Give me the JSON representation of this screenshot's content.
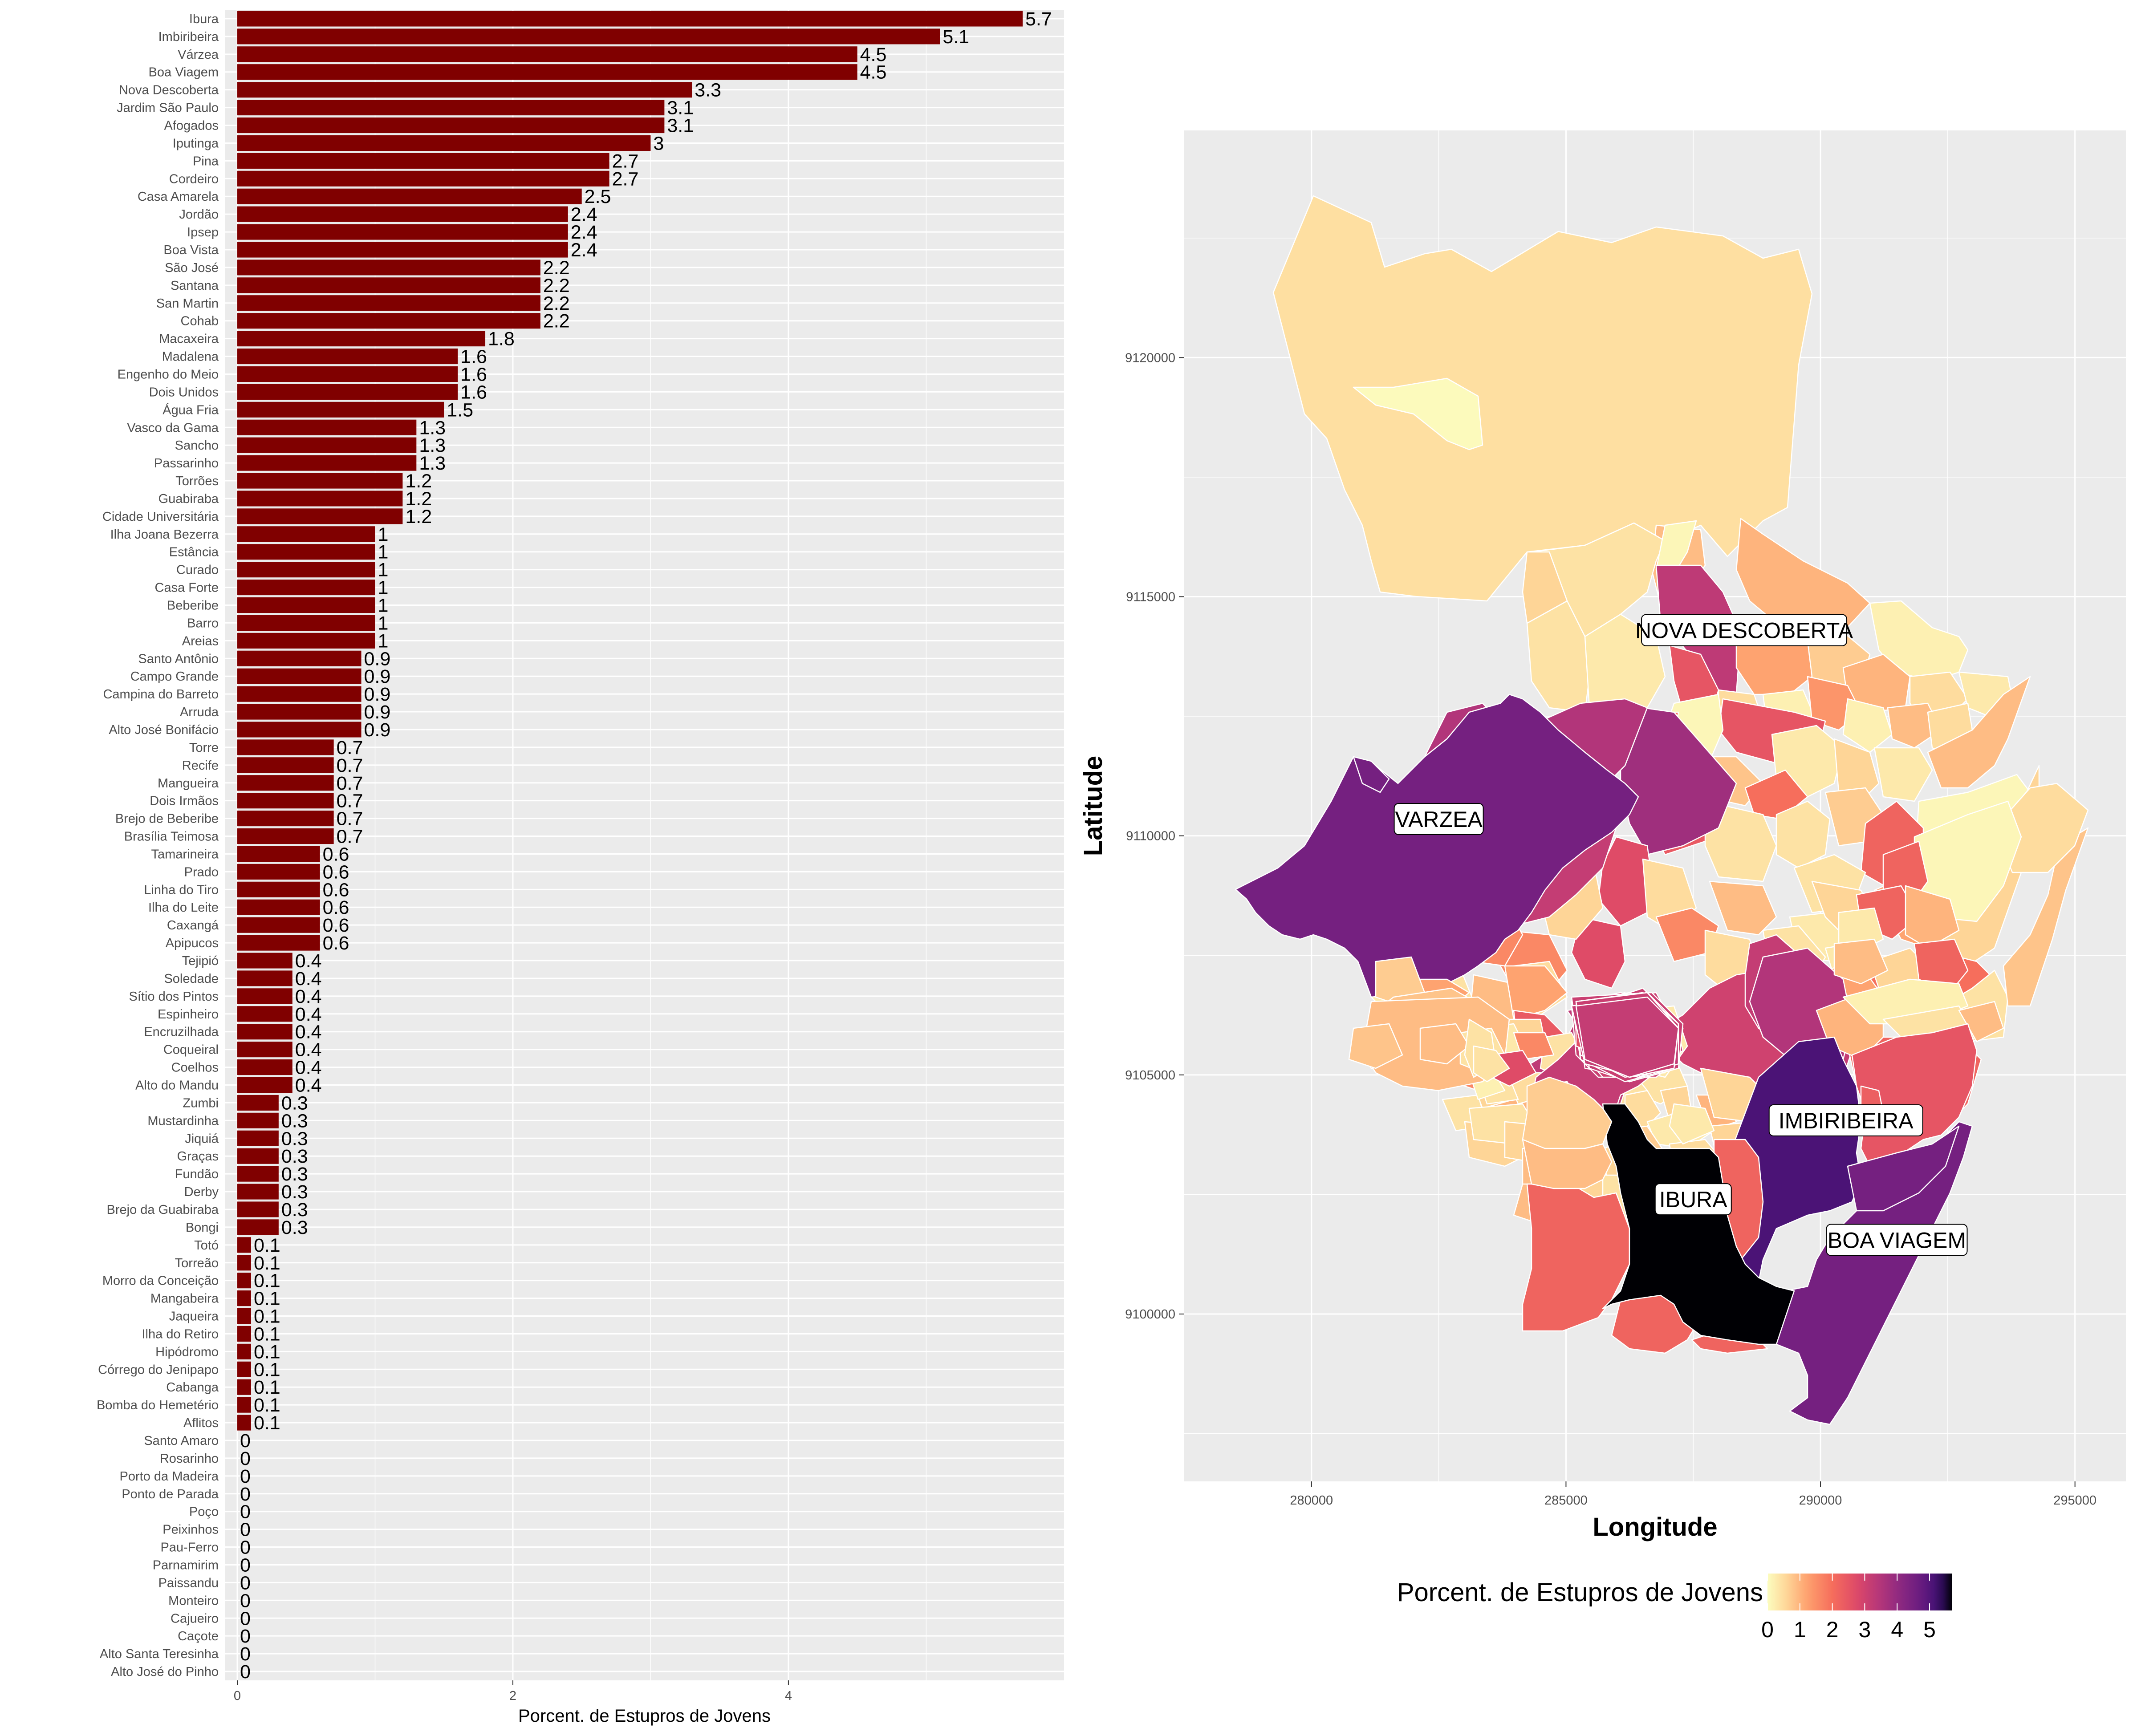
{
  "chart_data": [
    {
      "type": "bar",
      "orientation": "horizontal",
      "xlabel": "Porcent. de Estupros de Jovens",
      "xlim": [
        0,
        6
      ],
      "xticks": [
        0,
        2,
        4
      ],
      "bar_color": "#800000",
      "categories": [
        "Ibura",
        "Imbiribeira",
        "Várzea",
        "Boa Viagem",
        "Nova Descoberta",
        "Jardim São Paulo",
        "Afogados",
        "Iputinga",
        "Pina",
        "Cordeiro",
        "Casa Amarela",
        "Jordão",
        "Ipsep",
        "Boa Vista",
        "São José",
        "Santana",
        "San Martin",
        "Cohab",
        "Macaxeira",
        "Madalena",
        "Engenho do Meio",
        "Dois Unidos",
        "Água Fria",
        "Vasco da Gama",
        "Sancho",
        "Passarinho",
        "Torrões",
        "Guabiraba",
        "Cidade Universitária",
        "Ilha Joana Bezerra",
        "Estância",
        "Curado",
        "Casa Forte",
        "Beberibe",
        "Barro",
        "Areias",
        "Santo Antônio",
        "Campo Grande",
        "Campina do Barreto",
        "Arruda",
        "Alto José Bonifácio",
        "Torre",
        "Recife",
        "Mangueira",
        "Dois Irmãos",
        "Brejo de Beberibe",
        "Brasília Teimosa",
        "Tamarineira",
        "Prado",
        "Linha do Tiro",
        "Ilha do Leite",
        "Caxangá",
        "Apipucos",
        "Tejipió",
        "Soledade",
        "Sítio dos Pintos",
        "Espinheiro",
        "Encruzilhada",
        "Coqueiral",
        "Coelhos",
        "Alto do Mandu",
        "Zumbi",
        "Mustardinha",
        "Jiquiá",
        "Graças",
        "Fundão",
        "Derby",
        "Brejo da Guabiraba",
        "Bongi",
        "Totó",
        "Torreão",
        "Morro da Conceição",
        "Mangabeira",
        "Jaqueira",
        "Ilha do Retiro",
        "Hipódromo",
        "Córrego do Jenipapo",
        "Cabanga",
        "Bomba do Hemetério",
        "Aflitos",
        "Santo Amaro",
        "Rosarinho",
        "Porto da Madeira",
        "Ponto de Parada",
        "Poço",
        "Peixinhos",
        "Pau-Ferro",
        "Parnamirim",
        "Paissandu",
        "Monteiro",
        "Cajueiro",
        "Caçote",
        "Alto Santa Teresinha",
        "Alto José do Pinho"
      ],
      "values": [
        5.7,
        5.1,
        4.5,
        4.5,
        3.3,
        3.1,
        3.1,
        3,
        2.7,
        2.7,
        2.5,
        2.4,
        2.4,
        2.4,
        2.2,
        2.2,
        2.2,
        2.2,
        1.8,
        1.6,
        1.6,
        1.6,
        1.5,
        1.3,
        1.3,
        1.3,
        1.2,
        1.2,
        1.2,
        1,
        1,
        1,
        1,
        1,
        1,
        1,
        0.9,
        0.9,
        0.9,
        0.9,
        0.9,
        0.7,
        0.7,
        0.7,
        0.7,
        0.7,
        0.7,
        0.6,
        0.6,
        0.6,
        0.6,
        0.6,
        0.6,
        0.4,
        0.4,
        0.4,
        0.4,
        0.4,
        0.4,
        0.4,
        0.4,
        0.3,
        0.3,
        0.3,
        0.3,
        0.3,
        0.3,
        0.3,
        0.3,
        0.1,
        0.1,
        0.1,
        0.1,
        0.1,
        0.1,
        0.1,
        0.1,
        0.1,
        0.1,
        0.1,
        0,
        0,
        0,
        0,
        0,
        0,
        0,
        0,
        0,
        0,
        0,
        0,
        0,
        0
      ]
    },
    {
      "type": "choropleth",
      "xlabel": "Longitude",
      "ylabel": "Latitude",
      "xticks": [
        280000,
        285000,
        290000,
        295000
      ],
      "yticks": [
        9100000,
        9105000,
        9110000,
        9115000,
        9120000
      ],
      "xlim": [
        277500,
        296000
      ],
      "ylim": [
        9096500,
        9124750
      ],
      "legend": {
        "title": "Porcent. de Estupros de Jovens",
        "position": "bottom",
        "ticks": [
          0,
          1,
          2,
          3,
          4,
          5
        ],
        "range": [
          0,
          5.7
        ],
        "palette": "magma-reversed"
      },
      "labels": [
        {
          "text": "NOVA DESCOBERTA",
          "x": 288500,
          "y": 9114300
        },
        {
          "text": "VARZEA",
          "x": 282500,
          "y": 9110350
        },
        {
          "text": "IMBIRIBEIRA",
          "x": 290500,
          "y": 9104050
        },
        {
          "text": "IBURA",
          "x": 287500,
          "y": 9102400
        },
        {
          "text": "BOA VIAGEM",
          "x": 291500,
          "y": 9101550
        }
      ]
    }
  ]
}
